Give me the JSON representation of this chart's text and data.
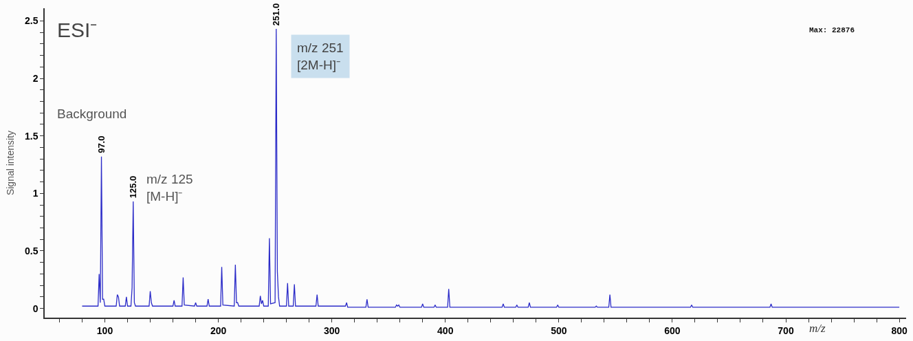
{
  "chart_data": {
    "type": "line",
    "xlabel": "m/z",
    "ylabel": "Signal intensity",
    "annotations": [
      "ESI⁻",
      "Background",
      "m/z 125\n[M-H]⁻",
      "m/z 251\n[2M-H]⁻",
      "Max: 22876",
      {
        "text": "97.0",
        "x": 97,
        "y": 1.32
      },
      {
        "text": "125.0",
        "x": 125,
        "y": 0.93
      },
      {
        "text": "251.0",
        "x": 251,
        "y": 2.43
      }
    ],
    "series": [
      {
        "color": "#2b2bc8",
        "x": [
          80,
          94,
          95,
          96,
          97,
          98,
          99,
          100,
          110,
          111,
          112,
          113,
          118,
          119,
          120,
          123,
          124,
          125,
          126,
          127,
          139,
          140,
          141,
          142,
          160,
          161,
          162,
          168,
          169,
          170,
          179,
          180,
          181,
          190,
          191,
          192,
          202,
          203,
          204,
          214,
          215,
          216,
          217,
          218,
          236,
          237,
          238,
          239,
          240,
          244,
          245,
          246,
          250,
          251,
          252,
          253,
          254,
          260,
          261,
          262,
          266,
          267,
          268,
          286,
          287,
          288,
          312,
          313,
          314,
          330,
          331,
          332,
          356,
          357,
          358,
          359,
          360,
          379,
          380,
          381,
          390,
          391,
          392,
          402,
          403,
          404,
          450,
          451,
          452,
          462,
          463,
          464,
          473,
          474,
          475,
          498,
          499,
          500,
          532,
          533,
          534,
          544,
          545,
          546,
          616,
          617,
          618,
          686,
          687,
          688,
          800
        ],
        "values": [
          0.02,
          0.02,
          0.3,
          0.05,
          1.32,
          0.08,
          0.08,
          0.02,
          0.02,
          0.12,
          0.1,
          0.02,
          0.02,
          0.1,
          0.02,
          0.02,
          0.18,
          0.93,
          0.05,
          0.02,
          0.02,
          0.15,
          0.05,
          0.02,
          0.02,
          0.07,
          0.02,
          0.02,
          0.27,
          0.03,
          0.02,
          0.05,
          0.02,
          0.02,
          0.08,
          0.02,
          0.02,
          0.36,
          0.03,
          0.02,
          0.38,
          0.05,
          0.05,
          0.02,
          0.02,
          0.11,
          0.04,
          0.07,
          0.02,
          0.02,
          0.61,
          0.04,
          0.05,
          2.43,
          0.32,
          0.1,
          0.02,
          0.02,
          0.22,
          0.02,
          0.02,
          0.21,
          0.02,
          0.02,
          0.12,
          0.02,
          0.02,
          0.05,
          0.01,
          0.01,
          0.08,
          0.01,
          0.01,
          0.03,
          0.02,
          0.03,
          0.01,
          0.01,
          0.04,
          0.01,
          0.01,
          0.03,
          0.01,
          0.01,
          0.17,
          0.01,
          0.01,
          0.04,
          0.01,
          0.01,
          0.03,
          0.01,
          0.01,
          0.05,
          0.01,
          0.01,
          0.03,
          0.01,
          0.01,
          0.02,
          0.01,
          0.01,
          0.12,
          0.01,
          0.01,
          0.03,
          0.01,
          0.01,
          0.04,
          0.01,
          0.01
        ]
      }
    ],
    "xlim": [
      47,
      806
    ],
    "xticks": [
      {
        "value": 60,
        "label": null
      },
      {
        "value": 80,
        "label": null
      },
      100,
      {
        "value": 120,
        "label": null
      },
      {
        "value": 140,
        "label": null
      },
      {
        "value": 160,
        "label": null
      },
      {
        "value": 180,
        "label": null
      },
      200,
      {
        "value": 220,
        "label": null
      },
      {
        "value": 240,
        "label": null
      },
      {
        "value": 260,
        "label": null
      },
      {
        "value": 280,
        "label": null
      },
      300,
      {
        "value": 320,
        "label": null
      },
      {
        "value": 340,
        "label": null
      },
      {
        "value": 360,
        "label": null
      },
      {
        "value": 380,
        "label": null
      },
      400,
      {
        "value": 420,
        "label": null
      },
      {
        "value": 440,
        "label": null
      },
      {
        "value": 460,
        "label": null
      },
      {
        "value": 480,
        "label": null
      },
      500,
      {
        "value": 520,
        "label": null
      },
      {
        "value": 540,
        "label": null
      },
      {
        "value": 560,
        "label": null
      },
      {
        "value": 580,
        "label": null
      },
      600,
      {
        "value": 620,
        "label": null
      },
      {
        "value": 640,
        "label": null
      },
      {
        "value": 660,
        "label": null
      },
      {
        "value": 680,
        "label": null
      },
      700,
      {
        "value": 720,
        "label": null
      },
      {
        "value": 740,
        "label": null
      },
      {
        "value": 760,
        "label": null
      },
      {
        "value": 780,
        "label": null
      },
      800
    ],
    "ylim": [
      -0.08,
      2.61
    ],
    "yticks": [
      0,
      {
        "value": 0.1,
        "label": null
      },
      {
        "value": 0.2,
        "label": null
      },
      {
        "value": 0.3,
        "label": null
      },
      {
        "value": 0.4,
        "label": null
      },
      0.5,
      {
        "value": 0.6,
        "label": null
      },
      {
        "value": 0.7,
        "label": null
      },
      {
        "value": 0.8,
        "label": null
      },
      {
        "value": 0.9,
        "label": null
      },
      1,
      {
        "value": 1.1,
        "label": null
      },
      {
        "value": 1.2,
        "label": null
      },
      {
        "value": 1.3,
        "label": null
      },
      {
        "value": 1.4,
        "label": null
      },
      1.5,
      {
        "value": 1.6,
        "label": null
      },
      {
        "value": 1.7,
        "label": null
      },
      {
        "value": 1.8,
        "label": null
      },
      {
        "value": 1.9,
        "label": null
      },
      2,
      {
        "value": 2.1,
        "label": null
      },
      {
        "value": 2.2,
        "label": null
      },
      {
        "value": 2.3,
        "label": null
      },
      {
        "value": 2.4,
        "label": null
      },
      2.5
    ],
    "grid": false,
    "marker": "none",
    "line_style": "solid"
  }
}
